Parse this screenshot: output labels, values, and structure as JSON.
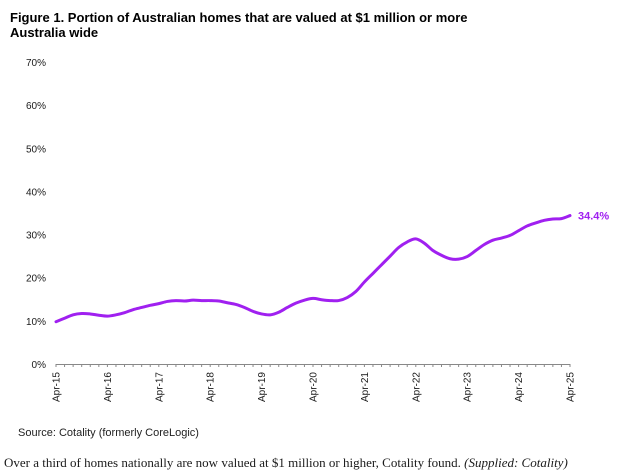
{
  "header": {
    "title": "Figure 1. Portion of Australian homes that are valued at $1 million or more",
    "subtitle": "Australia wide"
  },
  "footer": {
    "source": "Source: Cotality (formerly CoreLogic)",
    "caption": "Over a third of homes nationally are now valued at $1 million or higher, Cotality found.",
    "credit": "(Supplied: Cotality)"
  },
  "colors": {
    "line": "#a020f0",
    "axis": "#888888",
    "text": "#1a1a1a"
  },
  "chart_data": {
    "type": "line",
    "title": "Figure 1. Portion of Australian homes that are valued at $1 million or more",
    "subtitle": "Australia wide",
    "xlabel": "",
    "ylabel": "",
    "ylim": [
      0,
      70
    ],
    "y_ticks": [
      0,
      10,
      20,
      30,
      40,
      50,
      60,
      70
    ],
    "y_tick_labels": [
      "0%",
      "10%",
      "20%",
      "30%",
      "40%",
      "50%",
      "60%",
      "70%"
    ],
    "x_tick_labels": [
      "Apr-15",
      "Apr-16",
      "Apr-17",
      "Apr-18",
      "Apr-19",
      "Apr-20",
      "Apr-21",
      "Apr-22",
      "Apr-23",
      "Apr-24",
      "Apr-25"
    ],
    "grid": false,
    "end_label": "34.4%",
    "series": [
      {
        "color": "#a020f0",
        "x": [
          "Apr-15",
          "Jun-15",
          "Aug-15",
          "Oct-15",
          "Dec-15",
          "Feb-16",
          "Apr-16",
          "Jun-16",
          "Aug-16",
          "Oct-16",
          "Dec-16",
          "Feb-17",
          "Apr-17",
          "Jun-17",
          "Aug-17",
          "Oct-17",
          "Dec-17",
          "Feb-18",
          "Apr-18",
          "Jun-18",
          "Aug-18",
          "Oct-18",
          "Dec-18",
          "Feb-19",
          "Apr-19",
          "Jun-19",
          "Aug-19",
          "Oct-19",
          "Dec-19",
          "Feb-20",
          "Apr-20",
          "Jun-20",
          "Aug-20",
          "Oct-20",
          "Dec-20",
          "Feb-21",
          "Apr-21",
          "Jun-21",
          "Aug-21",
          "Oct-21",
          "Dec-21",
          "Feb-22",
          "Apr-22",
          "Jun-22",
          "Aug-22",
          "Oct-22",
          "Dec-22",
          "Feb-23",
          "Apr-23",
          "Jun-23",
          "Aug-23",
          "Oct-23",
          "Dec-23",
          "Feb-24",
          "Apr-24",
          "Jun-24",
          "Aug-24",
          "Oct-24",
          "Dec-24",
          "Feb-25",
          "Apr-25"
        ],
        "values": [
          9.8,
          10.6,
          11.4,
          11.7,
          11.6,
          11.3,
          11.1,
          11.4,
          11.9,
          12.6,
          13.1,
          13.6,
          14.0,
          14.5,
          14.7,
          14.6,
          14.8,
          14.7,
          14.7,
          14.6,
          14.2,
          13.8,
          13.1,
          12.2,
          11.6,
          11.4,
          12.0,
          13.1,
          14.1,
          14.8,
          15.2,
          14.9,
          14.7,
          14.7,
          15.4,
          16.8,
          19.0,
          21.0,
          23.0,
          25.0,
          27.0,
          28.3,
          29.0,
          28.0,
          26.3,
          25.2,
          24.4,
          24.3,
          24.9,
          26.3,
          27.7,
          28.7,
          29.2,
          29.8,
          30.9,
          32.0,
          32.7,
          33.3,
          33.6,
          33.7,
          34.4
        ]
      }
    ]
  }
}
